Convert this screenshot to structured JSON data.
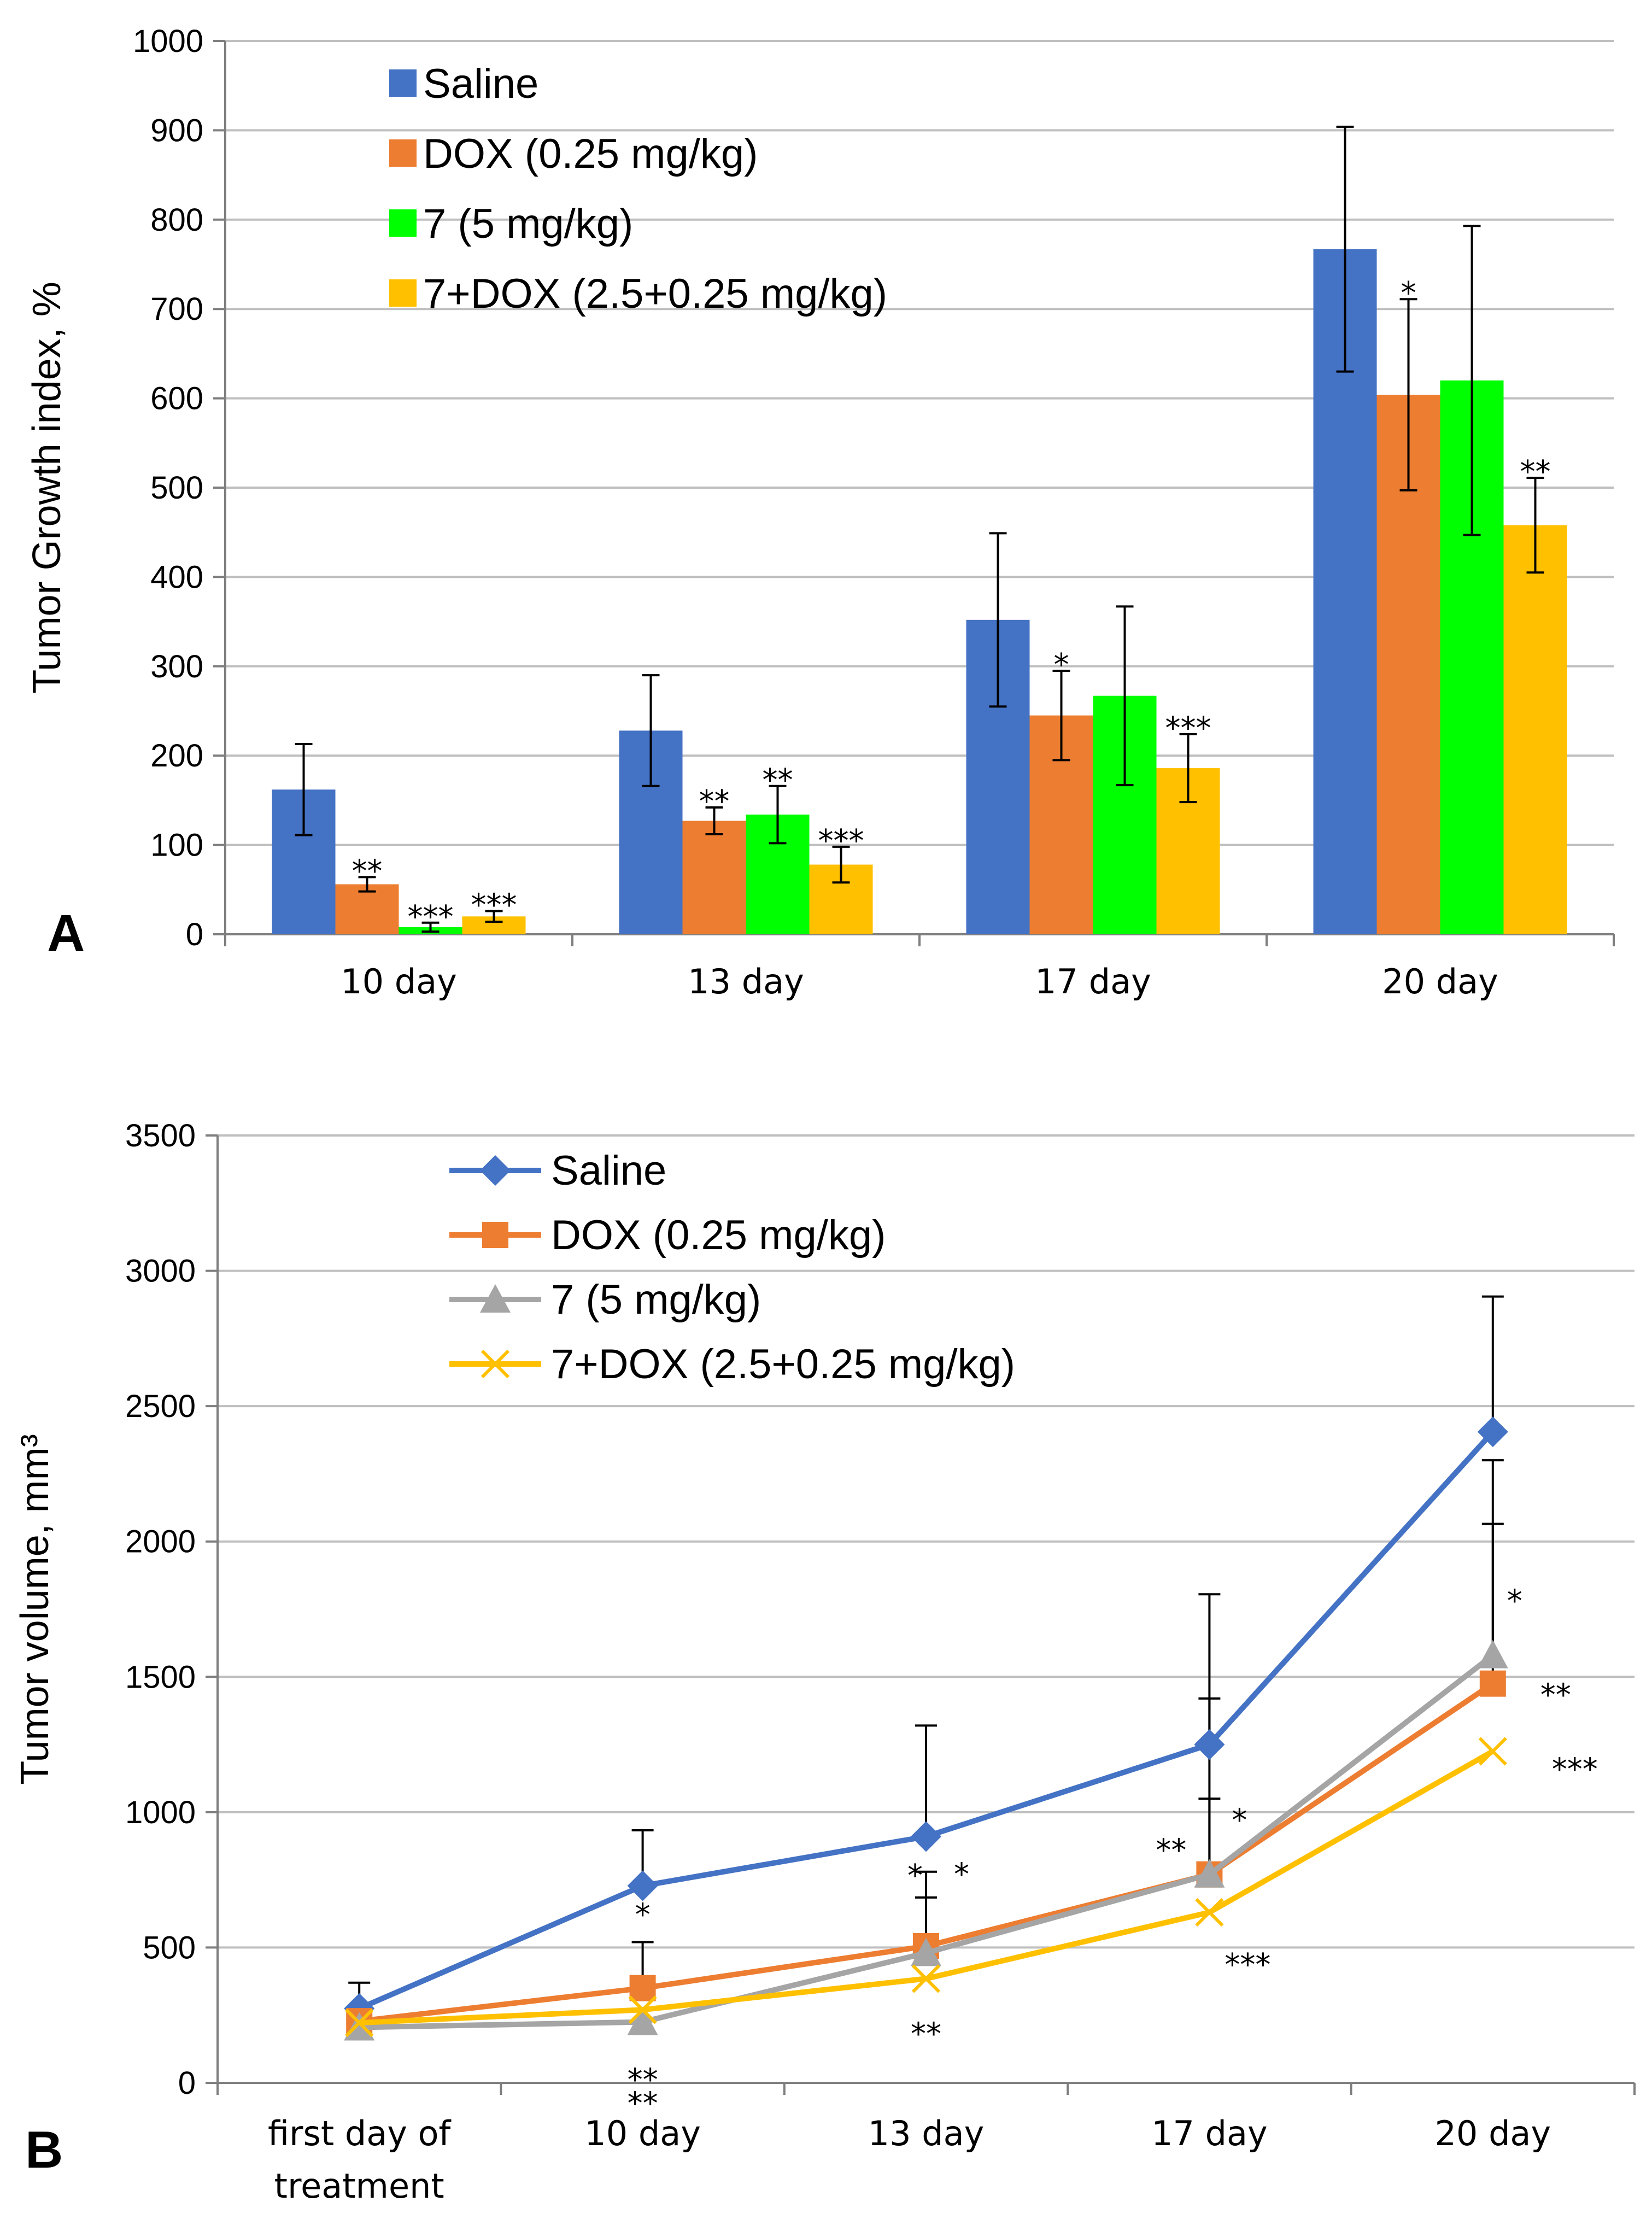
{
  "panels": {
    "a_label": "A",
    "b_label": "B"
  },
  "chart_data": [
    {
      "id": "A",
      "type": "bar",
      "ylabel": "Tumor Growth index, %",
      "xlabel": "",
      "ylim": [
        0,
        1000
      ],
      "yticks": [
        "0",
        "100",
        "200",
        "300",
        "400",
        "500",
        "600",
        "700",
        "800",
        "900",
        "1000"
      ],
      "grid": true,
      "legend_position": "top-left",
      "categories": [
        "10  day",
        "13 day",
        "17 day",
        "20 day"
      ],
      "series": [
        {
          "name": "Saline",
          "color": "#4472C4",
          "values": [
            162,
            228,
            352,
            767
          ],
          "err": [
            51,
            62,
            97,
            137
          ],
          "sig": [
            "",
            "",
            "",
            ""
          ]
        },
        {
          "name": "DOX (0.25 mg/kg)",
          "color": "#ED7D31",
          "values": [
            56,
            127,
            245,
            604
          ],
          "err": [
            8,
            15,
            50,
            107
          ],
          "sig": [
            "**",
            "**",
            "*",
            "*"
          ]
        },
        {
          "name": "7 (5 mg/kg)",
          "color": "#00FF00",
          "values": [
            8,
            134,
            267,
            620
          ],
          "err": [
            5,
            32,
            100,
            173
          ],
          "sig": [
            "***",
            "**",
            "",
            ""
          ]
        },
        {
          "name": "7+DOX (2.5+0.25 mg/kg)",
          "color": "#FFC000",
          "values": [
            20,
            78,
            186,
            458
          ],
          "err": [
            6,
            20,
            38,
            53
          ],
          "sig": [
            "***",
            "***",
            "***",
            "**"
          ]
        }
      ]
    },
    {
      "id": "B",
      "type": "line",
      "ylabel": "Tumor volume, mm³",
      "xlabel": "",
      "ylim": [
        0,
        3500
      ],
      "yticks": [
        "0",
        "500",
        "1000",
        "1500",
        "2000",
        "2500",
        "3000",
        "3500"
      ],
      "grid": true,
      "legend_position": "top-left",
      "categories": [
        "first day of\ntreatment",
        "10  day",
        "13 day",
        "17 day",
        "20 day"
      ],
      "series": [
        {
          "name": "Saline",
          "color": "#4472C4",
          "marker": "diamond",
          "values": [
            275,
            728,
            910,
            1250,
            2405
          ],
          "err": [
            95,
            205,
            410,
            555,
            500
          ],
          "sig": [
            "",
            "",
            "",
            "",
            ""
          ]
        },
        {
          "name": "DOX (0.25 mg/kg)",
          "color": "#ED7D31",
          "marker": "square",
          "values": [
            228,
            350,
            505,
            770,
            1475
          ],
          "err": [
            0,
            170,
            180,
            650,
            590
          ],
          "sig": [
            "",
            "*",
            "*",
            "**",
            "**"
          ]
        },
        {
          "name": "7 (5 mg/kg)",
          "color": "#A5A5A5",
          "marker": "triangle",
          "values": [
            205,
            225,
            480,
            770,
            1580
          ],
          "err": [
            0,
            0,
            300,
            280,
            720
          ],
          "sig": [
            "",
            "**",
            "*",
            "*",
            "*"
          ]
        },
        {
          "name": "7+DOX (2.5+0.25 mg/kg)",
          "color": "#FFC000",
          "marker": "x",
          "values": [
            222,
            270,
            385,
            630,
            1225
          ],
          "err": [
            0,
            0,
            0,
            0,
            0
          ],
          "sig": [
            "",
            "**",
            "**",
            "***",
            "***"
          ]
        }
      ]
    }
  ]
}
